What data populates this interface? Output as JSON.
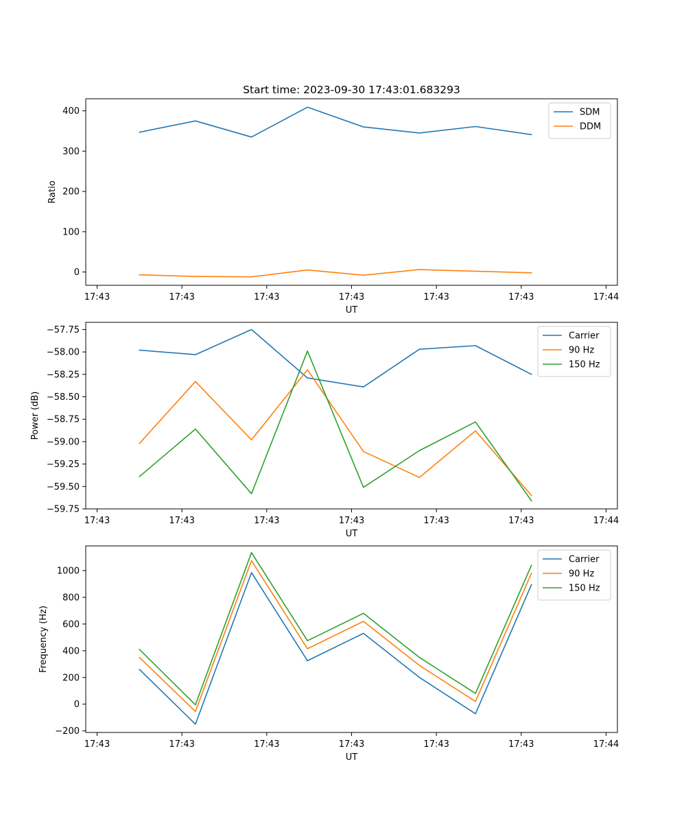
{
  "chart_data": [
    {
      "type": "line",
      "title": "Start time: 2023-09-30 17:43:01.683293",
      "xlabel": "UT",
      "ylabel": "Ratio",
      "x_tick_labels": [
        "17:43",
        "17:43",
        "17:43",
        "17:43",
        "17:43",
        "17:43",
        "17:44"
      ],
      "x_tick_positions": [
        0,
        1.5,
        3,
        4.5,
        6,
        7.5,
        9
      ],
      "xlim": [
        -0.2,
        9.2
      ],
      "x": [
        0.75,
        1.74,
        2.73,
        3.72,
        4.71,
        5.7,
        6.69,
        7.68
      ],
      "y_ticks": [
        0,
        100,
        200,
        300,
        400
      ],
      "ylim": [
        -33,
        430
      ],
      "legend": "top-right",
      "series": [
        {
          "name": "SDM",
          "color": "#1f77b4",
          "values": [
            347,
            375,
            335,
            409,
            360,
            345,
            361,
            341
          ]
        },
        {
          "name": "DDM",
          "color": "#ff7f0e",
          "values": [
            -7,
            -11,
            -12,
            5,
            -8,
            6,
            2,
            -2
          ]
        }
      ]
    },
    {
      "type": "line",
      "title": "",
      "xlabel": "UT",
      "ylabel": "Power (dB)",
      "x_tick_labels": [
        "17:43",
        "17:43",
        "17:43",
        "17:43",
        "17:43",
        "17:43",
        "17:44"
      ],
      "x_tick_positions": [
        0,
        1.5,
        3,
        4.5,
        6,
        7.5,
        9
      ],
      "xlim": [
        -0.2,
        9.2
      ],
      "x": [
        0.75,
        1.74,
        2.73,
        3.72,
        4.71,
        5.7,
        6.69,
        7.68
      ],
      "y_ticks": [
        -57.75,
        -58.0,
        -58.25,
        -58.5,
        -58.75,
        -59.0,
        -59.25,
        -59.5,
        -59.75
      ],
      "y_tick_labels": [
        "−57.75",
        "−58.00",
        "−58.25",
        "−58.50",
        "−58.75",
        "−59.00",
        "−59.25",
        "−59.50",
        "−59.75"
      ],
      "ylim": [
        -59.75,
        -57.67
      ],
      "legend": "top-right",
      "series": [
        {
          "name": "Carrier",
          "color": "#1f77b4",
          "values": [
            -57.98,
            -58.03,
            -57.75,
            -58.29,
            -58.39,
            -57.97,
            -57.93,
            -58.25
          ]
        },
        {
          "name": "90 Hz",
          "color": "#ff7f0e",
          "values": [
            -59.02,
            -58.33,
            -58.98,
            -58.2,
            -59.11,
            -59.4,
            -58.88,
            -59.6
          ]
        },
        {
          "name": "150 Hz",
          "color": "#2ca02c",
          "values": [
            -59.39,
            -58.86,
            -59.58,
            -57.99,
            -59.51,
            -59.1,
            -58.78,
            -59.66
          ]
        }
      ]
    },
    {
      "type": "line",
      "title": "",
      "xlabel": "UT",
      "ylabel": "Frequency (Hz)",
      "x_tick_labels": [
        "17:43",
        "17:43",
        "17:43",
        "17:43",
        "17:43",
        "17:43",
        "17:44"
      ],
      "x_tick_positions": [
        0,
        1.5,
        3,
        4.5,
        6,
        7.5,
        9
      ],
      "xlim": [
        -0.2,
        9.2
      ],
      "x": [
        0.75,
        1.74,
        2.73,
        3.72,
        4.71,
        5.7,
        6.69,
        7.68
      ],
      "y_ticks": [
        -200,
        0,
        200,
        400,
        600,
        800,
        1000
      ],
      "y_tick_labels": [
        "−200",
        "0",
        "200",
        "400",
        "600",
        "800",
        "1000"
      ],
      "ylim": [
        -212,
        1185
      ],
      "legend": "top-right",
      "series": [
        {
          "name": "Carrier",
          "color": "#1f77b4",
          "values": [
            260,
            -150,
            985,
            325,
            530,
            200,
            -72,
            895
          ]
        },
        {
          "name": "90 Hz",
          "color": "#ff7f0e",
          "values": [
            350,
            -55,
            1075,
            415,
            620,
            290,
            20,
            980
          ]
        },
        {
          "name": "150 Hz",
          "color": "#2ca02c",
          "values": [
            410,
            -5,
            1135,
            475,
            680,
            350,
            80,
            1040
          ]
        }
      ]
    }
  ]
}
